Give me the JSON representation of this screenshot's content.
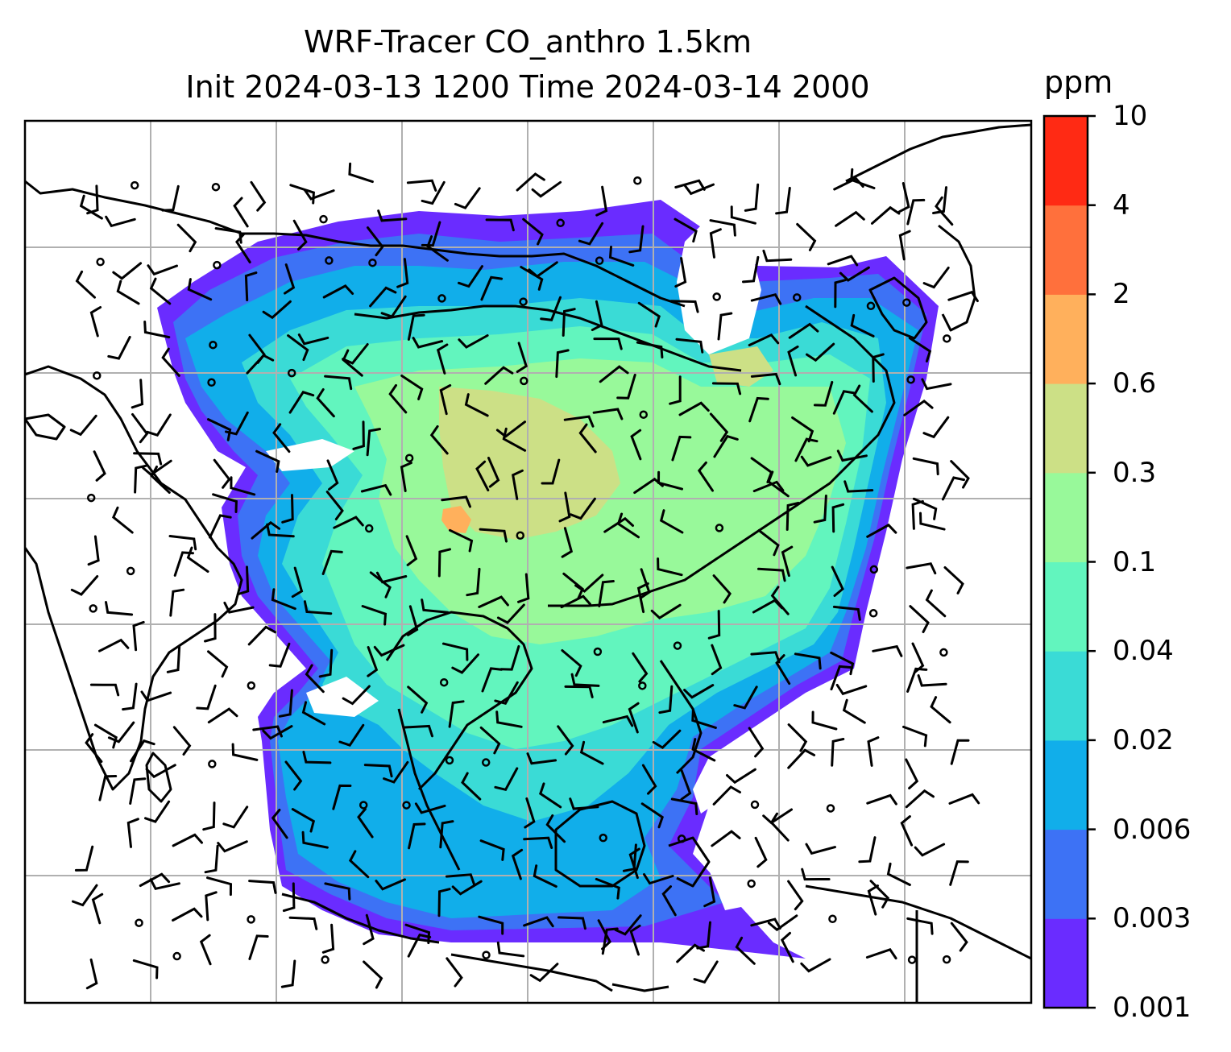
{
  "title": {
    "line1": "WRF-Tracer CO_anthro 1.5km",
    "line2": "Init 2024-03-13 1200 Time 2024-03-14 2000"
  },
  "colorbar": {
    "unit": "ppm",
    "levels": [
      "0.001",
      "0.003",
      "0.006",
      "0.02",
      "0.04",
      "0.1",
      "0.3",
      "0.6",
      "2",
      "4",
      "10"
    ],
    "colors": [
      "#6a2cff",
      "#3d72f5",
      "#11aeea",
      "#3adbd6",
      "#62f5be",
      "#98f99a",
      "#cce086",
      "#ffb05c",
      "#ff703c",
      "#ff2a14"
    ]
  },
  "map": {
    "background": "#ffffff",
    "gridlines": true,
    "grid_color": "#b0b0b0",
    "coastline_color": "#000000",
    "wind_barbs": true
  }
}
